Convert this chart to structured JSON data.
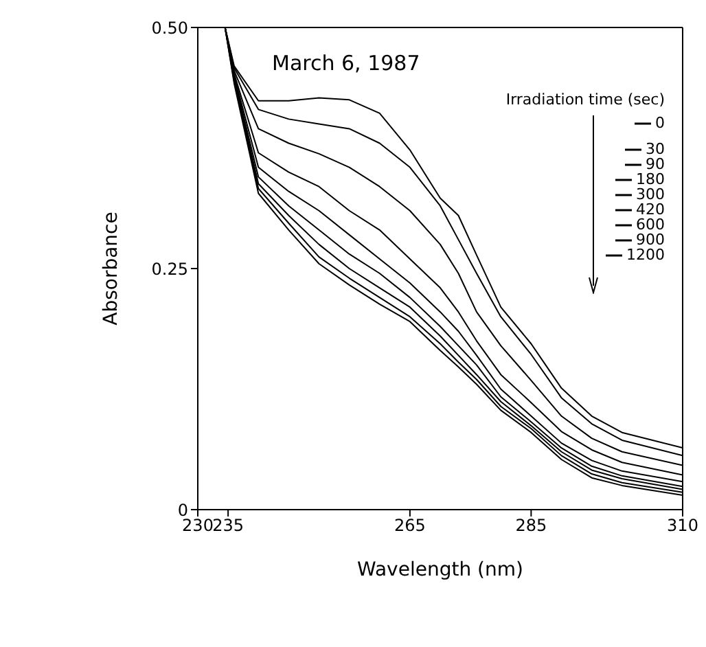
{
  "chart_data": {
    "type": "line",
    "title": "March 6, 1987",
    "xlabel": "Wavelength (nm)",
    "ylabel": "Absorbance",
    "legend_title": "Irradiation time (sec)",
    "legend": "top right",
    "grid": false,
    "marker": "none",
    "line_style": "solid",
    "x": [
      234.5,
      236,
      240,
      245,
      250,
      255,
      260,
      265,
      270,
      273,
      276,
      280,
      285,
      290,
      295,
      300,
      310
    ],
    "xlim": [
      230,
      310
    ],
    "xticks": [
      230,
      235,
      265,
      285,
      310
    ],
    "ylim": [
      0,
      0.5
    ],
    "yticks": [
      0,
      0.25,
      {
        "value": 0.5,
        "label": "0.50"
      }
    ],
    "series": [
      {
        "name": "0",
        "color": "#000000",
        "values": [
          0.5,
          0.46,
          0.424,
          0.424,
          0.427,
          0.425,
          0.411,
          0.373,
          0.323,
          0.305,
          0.264,
          0.21,
          0.172,
          0.126,
          0.097,
          0.08,
          0.064
        ]
      },
      {
        "name": "30",
        "color": "#000000",
        "values": [
          0.5,
          0.458,
          0.415,
          0.405,
          0.4,
          0.395,
          0.38,
          0.355,
          0.315,
          0.28,
          0.245,
          0.2,
          0.161,
          0.116,
          0.089,
          0.072,
          0.056
        ]
      },
      {
        "name": "90",
        "color": "#000000",
        "values": [
          0.5,
          0.455,
          0.395,
          0.38,
          0.369,
          0.355,
          0.335,
          0.31,
          0.275,
          0.245,
          0.205,
          0.17,
          0.134,
          0.097,
          0.074,
          0.06,
          0.046
        ]
      },
      {
        "name": "180",
        "color": "#000000",
        "values": [
          0.5,
          0.452,
          0.37,
          0.35,
          0.335,
          0.31,
          0.29,
          0.26,
          0.23,
          0.205,
          0.175,
          0.14,
          0.111,
          0.081,
          0.062,
          0.049,
          0.036
        ]
      },
      {
        "name": "300",
        "color": "#000000",
        "values": [
          0.5,
          0.45,
          0.355,
          0.33,
          0.31,
          0.285,
          0.26,
          0.235,
          0.205,
          0.185,
          0.16,
          0.125,
          0.097,
          0.069,
          0.051,
          0.04,
          0.029
        ]
      },
      {
        "name": "420",
        "color": "#000000",
        "values": [
          0.5,
          0.448,
          0.345,
          0.315,
          0.29,
          0.265,
          0.245,
          0.22,
          0.19,
          0.17,
          0.15,
          0.117,
          0.091,
          0.064,
          0.045,
          0.035,
          0.024
        ]
      },
      {
        "name": "600",
        "color": "#000000",
        "values": [
          0.5,
          0.446,
          0.338,
          0.305,
          0.275,
          0.25,
          0.23,
          0.21,
          0.18,
          0.16,
          0.14,
          0.112,
          0.087,
          0.06,
          0.041,
          0.032,
          0.021
        ]
      },
      {
        "name": "900",
        "color": "#000000",
        "values": [
          0.5,
          0.444,
          0.333,
          0.297,
          0.262,
          0.24,
          0.22,
          0.2,
          0.172,
          0.153,
          0.135,
          0.107,
          0.084,
          0.056,
          0.037,
          0.028,
          0.018
        ]
      },
      {
        "name": "1200",
        "color": "#000000",
        "values": [
          0.5,
          0.442,
          0.328,
          0.29,
          0.255,
          0.233,
          0.213,
          0.195,
          0.165,
          0.148,
          0.13,
          0.103,
          0.08,
          0.052,
          0.033,
          0.025,
          0.015
        ]
      }
    ]
  }
}
